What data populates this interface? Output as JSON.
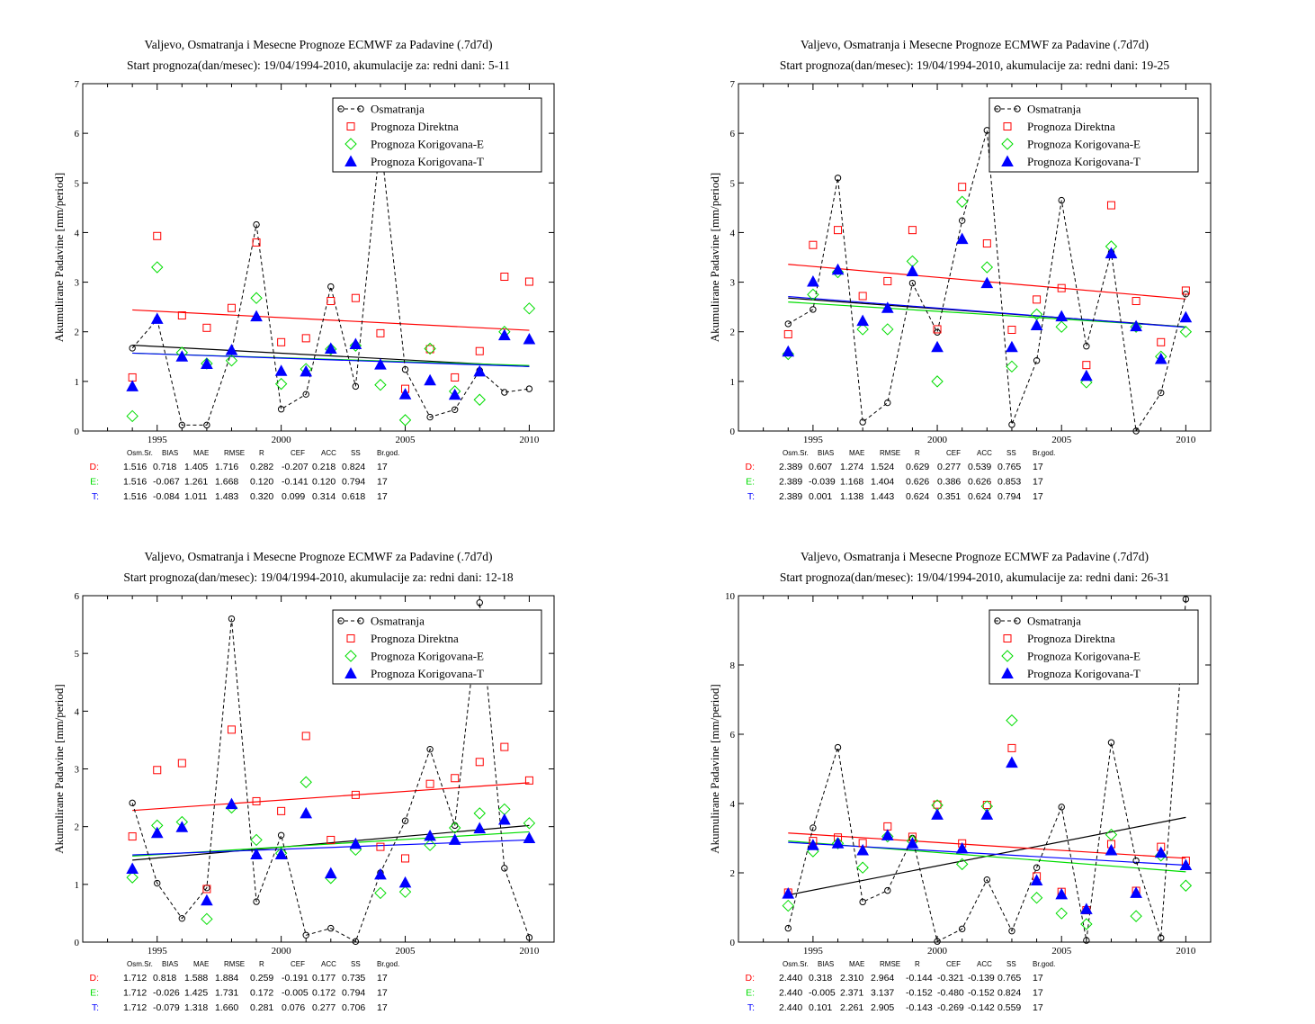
{
  "colors": {
    "obs": "#000000",
    "direct": "#ff0000",
    "corr_e": "#00dd00",
    "corr_t": "#0000ff"
  },
  "stats_header": [
    "Osm.Sr.",
    "BIAS",
    "MAE",
    "RMSE",
    "R",
    "CEF",
    "ACC",
    "SS",
    "Br.god."
  ],
  "chart_data": [
    {
      "type": "line",
      "title": "Valjevo, Osmatranja i Mesecne Prognoze ECMWF za Padavine (.7d7d)",
      "subtitle": "Start prognoza(dan/mesec): 19/04/1994-2010, akumulacije za: redni dani: 5-11",
      "ylabel": "Akumulirane Padavine [mm/period]",
      "xlabel": "",
      "xlim": [
        1992,
        2011
      ],
      "ylim": [
        0,
        7
      ],
      "xticks": [
        1995,
        2000,
        2005,
        2010
      ],
      "yticks": [
        0,
        1,
        2,
        3,
        4,
        5,
        6,
        7
      ],
      "legend": "top-right",
      "x": [
        1994,
        1995,
        1996,
        1997,
        1998,
        1999,
        2000,
        2001,
        2002,
        2003,
        2004,
        2005,
        2006,
        2007,
        2008,
        2009,
        2010
      ],
      "series": [
        {
          "name": "Osmatranja",
          "marker": "circle",
          "values": [
            1.67,
            2.25,
            0.12,
            0.12,
            1.6,
            4.16,
            0.44,
            0.74,
            2.91,
            0.9,
            5.9,
            1.24,
            0.28,
            0.43,
            1.22,
            0.78,
            0.85
          ]
        },
        {
          "name": "Prognoza Direktna",
          "marker": "square",
          "values": [
            1.08,
            3.93,
            2.33,
            2.08,
            2.48,
            3.8,
            1.79,
            1.87,
            2.62,
            2.68,
            1.97,
            0.85,
            1.65,
            1.08,
            1.61,
            3.11,
            3.01
          ]
        },
        {
          "name": "Prognoza Korigovana-E",
          "marker": "diamond",
          "values": [
            0.3,
            3.3,
            1.58,
            1.36,
            1.42,
            2.68,
            0.95,
            1.25,
            1.65,
            1.72,
            0.93,
            0.22,
            1.66,
            0.8,
            0.63,
            2.0,
            2.47
          ]
        },
        {
          "name": "Prognoza Korigovana-T",
          "marker": "triangle",
          "values": [
            0.9,
            2.26,
            1.5,
            1.35,
            1.63,
            2.31,
            1.21,
            1.2,
            1.66,
            1.75,
            1.34,
            0.74,
            1.02,
            0.73,
            1.2,
            1.93,
            1.85
          ]
        }
      ],
      "trends": [
        {
          "series": "Osmatranja",
          "y_start": 1.73,
          "y_end": 1.3
        },
        {
          "series": "Prognoza Direktna",
          "y_start": 2.44,
          "y_end": 2.03
        },
        {
          "series": "Prognoza Korigovana-E",
          "y_start": 1.57,
          "y_end": 1.32
        },
        {
          "series": "Prognoza Korigovana-T",
          "y_start": 1.57,
          "y_end": 1.3
        }
      ],
      "stats": [
        {
          "label": "D:",
          "values": [
            "1.516",
            "0.718",
            "1.405",
            "1.716",
            "0.282",
            "-0.207",
            "0.218",
            "0.824",
            "17"
          ]
        },
        {
          "label": "E:",
          "values": [
            "1.516",
            "-0.067",
            "1.261",
            "1.668",
            "0.120",
            "-0.141",
            "0.120",
            "0.794",
            "17"
          ]
        },
        {
          "label": "T:",
          "values": [
            "1.516",
            "-0.084",
            "1.011",
            "1.483",
            "0.320",
            "0.099",
            "0.314",
            "0.618",
            "17"
          ]
        }
      ]
    },
    {
      "type": "line",
      "title": "Valjevo, Osmatranja i Mesecne Prognoze ECMWF za Padavine (.7d7d)",
      "subtitle": "Start prognoza(dan/mesec): 19/04/1994-2010, akumulacije za: redni dani: 19-25",
      "ylabel": "Akumulirane Padavine [mm/period]",
      "xlabel": "",
      "xlim": [
        1992,
        2011
      ],
      "ylim": [
        0,
        7
      ],
      "xticks": [
        1995,
        2000,
        2005,
        2010
      ],
      "yticks": [
        0,
        1,
        2,
        3,
        4,
        5,
        6,
        7
      ],
      "legend": "top-right",
      "x": [
        1994,
        1995,
        1996,
        1997,
        1998,
        1999,
        2000,
        2001,
        2002,
        2003,
        2004,
        2005,
        2006,
        2007,
        2008,
        2009,
        2010
      ],
      "series": [
        {
          "name": "Osmatranja",
          "marker": "circle",
          "values": [
            2.16,
            2.45,
            5.1,
            0.18,
            0.57,
            2.98,
            1.99,
            4.24,
            6.06,
            0.13,
            1.42,
            4.65,
            1.71,
            3.6,
            0.0,
            0.77,
            2.76
          ]
        },
        {
          "name": "Prognoza Direktna",
          "marker": "square",
          "values": [
            1.95,
            3.75,
            4.05,
            2.72,
            3.02,
            4.05,
            2.05,
            4.92,
            3.78,
            2.04,
            2.65,
            2.88,
            1.33,
            4.55,
            2.62,
            1.79,
            2.83
          ]
        },
        {
          "name": "Prognoza Korigovana-E",
          "marker": "diamond",
          "values": [
            1.55,
            2.75,
            3.2,
            2.05,
            2.05,
            3.42,
            1.0,
            4.62,
            3.3,
            1.3,
            2.35,
            2.1,
            0.98,
            3.72,
            2.1,
            1.5,
            2.0
          ]
        },
        {
          "name": "Prognoza Korigovana-T",
          "marker": "triangle",
          "values": [
            1.6,
            3.01,
            3.25,
            2.22,
            2.48,
            3.22,
            1.69,
            3.87,
            2.98,
            1.69,
            2.13,
            2.31,
            1.11,
            3.58,
            2.11,
            1.45,
            2.29
          ]
        }
      ],
      "trends": [
        {
          "series": "Osmatranja",
          "y_start": 2.68,
          "y_end": 2.1
        },
        {
          "series": "Prognoza Direktna",
          "y_start": 3.36,
          "y_end": 2.66
        },
        {
          "series": "Prognoza Korigovana-E",
          "y_start": 2.6,
          "y_end": 2.1
        },
        {
          "series": "Prognoza Korigovana-T",
          "y_start": 2.71,
          "y_end": 2.09
        }
      ],
      "stats": [
        {
          "label": "D:",
          "values": [
            "2.389",
            "0.607",
            "1.274",
            "1.524",
            "0.629",
            "0.277",
            "0.539",
            "0.765",
            "17"
          ]
        },
        {
          "label": "E:",
          "values": [
            "2.389",
            "-0.039",
            "1.168",
            "1.404",
            "0.626",
            "0.386",
            "0.626",
            "0.853",
            "17"
          ]
        },
        {
          "label": "T:",
          "values": [
            "2.389",
            "0.001",
            "1.138",
            "1.443",
            "0.624",
            "0.351",
            "0.624",
            "0.794",
            "17"
          ]
        }
      ]
    },
    {
      "type": "line",
      "title": "Valjevo, Osmatranja i Mesecne Prognoze ECMWF za Padavine (.7d7d)",
      "subtitle": "Start prognoza(dan/mesec): 19/04/1994-2010, akumulacije za: redni dani: 12-18",
      "ylabel": "Akumulirane Padavine [mm/period]",
      "xlabel": "",
      "xlim": [
        1992,
        2011
      ],
      "ylim": [
        0,
        6
      ],
      "xticks": [
        1995,
        2000,
        2005,
        2010
      ],
      "yticks": [
        0,
        1,
        2,
        3,
        4,
        5,
        6
      ],
      "legend": "top-right",
      "x": [
        1994,
        1995,
        1996,
        1997,
        1998,
        1999,
        2000,
        2001,
        2002,
        2003,
        2004,
        2005,
        2006,
        2007,
        2008,
        2009,
        2010
      ],
      "series": [
        {
          "name": "Osmatranja",
          "marker": "circle",
          "values": [
            2.41,
            1.02,
            0.41,
            0.94,
            5.6,
            0.7,
            1.85,
            0.12,
            0.24,
            0.01,
            1.2,
            2.1,
            3.34,
            2.02,
            5.88,
            1.28,
            0.08
          ]
        },
        {
          "name": "Prognoza Direktna",
          "marker": "square",
          "values": [
            1.83,
            2.98,
            3.1,
            0.92,
            3.68,
            2.44,
            2.27,
            3.57,
            1.77,
            2.55,
            1.65,
            1.45,
            2.74,
            2.84,
            3.12,
            3.38,
            2.8
          ]
        },
        {
          "name": "Prognoza Korigovana-E",
          "marker": "diamond",
          "values": [
            1.12,
            2.02,
            2.08,
            0.4,
            2.33,
            1.77,
            1.54,
            2.77,
            1.11,
            1.6,
            0.85,
            0.87,
            1.68,
            1.98,
            2.23,
            2.3,
            2.06
          ]
        },
        {
          "name": "Prognoza Korigovana-T",
          "marker": "triangle",
          "values": [
            1.27,
            1.89,
            1.99,
            0.72,
            2.39,
            1.52,
            1.52,
            2.23,
            1.19,
            1.7,
            1.17,
            1.03,
            1.84,
            1.77,
            1.97,
            2.12,
            1.8
          ]
        }
      ],
      "trends": [
        {
          "series": "Osmatranja",
          "y_start": 1.42,
          "y_end": 2.02
        },
        {
          "series": "Prognoza Direktna",
          "y_start": 2.28,
          "y_end": 2.76
        },
        {
          "series": "Prognoza Korigovana-E",
          "y_start": 1.49,
          "y_end": 1.91
        },
        {
          "series": "Prognoza Korigovana-T",
          "y_start": 1.51,
          "y_end": 1.77
        }
      ],
      "stats": [
        {
          "label": "D:",
          "values": [
            "1.712",
            "0.818",
            "1.588",
            "1.884",
            "0.259",
            "-0.191",
            "0.177",
            "0.735",
            "17"
          ]
        },
        {
          "label": "E:",
          "values": [
            "1.712",
            "-0.026",
            "1.425",
            "1.731",
            "0.172",
            "-0.005",
            "0.172",
            "0.794",
            "17"
          ]
        },
        {
          "label": "T:",
          "values": [
            "1.712",
            "-0.079",
            "1.318",
            "1.660",
            "0.281",
            "0.076",
            "0.277",
            "0.706",
            "17"
          ]
        }
      ]
    },
    {
      "type": "line",
      "title": "Valjevo, Osmatranja i Mesecne Prognoze ECMWF za Padavine (.7d7d)",
      "subtitle": "Start prognoza(dan/mesec): 19/04/1994-2010, akumulacije za: redni dani: 26-31",
      "ylabel": "Akumulirane Padavine [mm/period]",
      "xlabel": "",
      "xlim": [
        1992,
        2011
      ],
      "ylim": [
        0,
        10
      ],
      "xticks": [
        1995,
        2000,
        2005,
        2010
      ],
      "yticks": [
        0,
        2,
        4,
        6,
        8,
        10
      ],
      "legend": "top-right",
      "x": [
        1994,
        1995,
        1996,
        1997,
        1998,
        1999,
        2000,
        2001,
        2002,
        2003,
        2004,
        2005,
        2006,
        2007,
        2008,
        2009,
        2010
      ],
      "series": [
        {
          "name": "Osmatranja",
          "marker": "circle",
          "values": [
            0.4,
            3.3,
            5.62,
            1.16,
            1.49,
            3.0,
            0.02,
            0.38,
            1.8,
            0.32,
            2.15,
            3.9,
            0.05,
            5.76,
            2.35,
            0.12,
            9.9
          ]
        },
        {
          "name": "Prognoza Direktna",
          "marker": "square",
          "values": [
            1.43,
            2.92,
            3.02,
            2.86,
            3.34,
            3.04,
            3.97,
            2.85,
            3.96,
            5.6,
            1.9,
            1.45,
            0.92,
            2.83,
            1.48,
            2.75,
            2.35
          ]
        },
        {
          "name": "Prognoza Korigovana-E",
          "marker": "diamond",
          "values": [
            1.05,
            2.62,
            2.85,
            2.15,
            3.05,
            2.92,
            3.95,
            2.25,
            3.92,
            6.4,
            1.28,
            0.83,
            0.52,
            3.1,
            0.75,
            2.5,
            1.63
          ]
        },
        {
          "name": "Prognoza Korigovana-T",
          "marker": "triangle",
          "values": [
            1.4,
            2.8,
            2.85,
            2.65,
            3.08,
            2.85,
            3.68,
            2.7,
            3.68,
            5.18,
            1.78,
            1.38,
            0.95,
            2.65,
            1.42,
            2.58,
            2.22
          ]
        }
      ],
      "trends": [
        {
          "series": "Osmatranja",
          "y_start": 1.36,
          "y_end": 3.6
        },
        {
          "series": "Prognoza Direktna",
          "y_start": 3.15,
          "y_end": 2.42
        },
        {
          "series": "Prognoza Korigovana-E",
          "y_start": 2.92,
          "y_end": 2.03
        },
        {
          "series": "Prognoza Korigovana-T",
          "y_start": 2.88,
          "y_end": 2.22
        }
      ],
      "stats": [
        {
          "label": "D:",
          "values": [
            "2.440",
            "0.318",
            "2.310",
            "2.964",
            "-0.144",
            "-0.321",
            "-0.139",
            "0.765",
            "17"
          ]
        },
        {
          "label": "E:",
          "values": [
            "2.440",
            "-0.005",
            "2.371",
            "3.137",
            "-0.152",
            "-0.480",
            "-0.152",
            "0.824",
            "17"
          ]
        },
        {
          "label": "T:",
          "values": [
            "2.440",
            "0.101",
            "2.261",
            "2.905",
            "-0.143",
            "-0.269",
            "-0.142",
            "0.559",
            "17"
          ]
        }
      ]
    }
  ]
}
